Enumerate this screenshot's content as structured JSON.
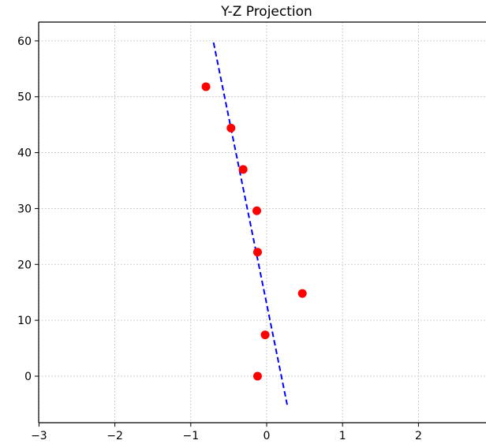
{
  "chart_data": {
    "type": "scatter",
    "title": "Y-Z Projection",
    "xlabel": "",
    "ylabel": "",
    "xlim": [
      -3,
      3
    ],
    "ylim": [
      -8.4,
      63.4
    ],
    "x_ticks": [
      -3,
      -2,
      -1,
      0,
      1,
      2
    ],
    "x_tick_labels": [
      "−3",
      "−2",
      "−1",
      "0",
      "1",
      "2"
    ],
    "y_ticks": [
      0,
      10,
      20,
      30,
      40,
      50,
      60
    ],
    "y_tick_labels": [
      "0",
      "10",
      "20",
      "30",
      "40",
      "50",
      "60"
    ],
    "grid": true,
    "series": [
      {
        "type": "scatter",
        "color": "#ff0000",
        "points": [
          {
            "x": -0.8,
            "y": 51.8
          },
          {
            "x": -0.47,
            "y": 44.4
          },
          {
            "x": -0.31,
            "y": 37.0
          },
          {
            "x": -0.13,
            "y": 29.6
          },
          {
            "x": -0.12,
            "y": 22.2
          },
          {
            "x": 0.47,
            "y": 14.8
          },
          {
            "x": -0.02,
            "y": 7.4
          },
          {
            "x": -0.12,
            "y": 0.0
          }
        ]
      },
      {
        "type": "line",
        "style": "dashed",
        "color": "#0000ff",
        "points": [
          {
            "x": -0.7,
            "y": 59.7
          },
          {
            "x": 0.27,
            "y": -5.1
          }
        ]
      }
    ]
  }
}
